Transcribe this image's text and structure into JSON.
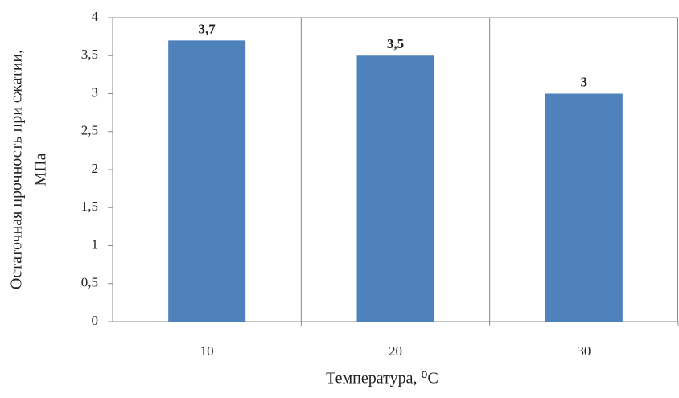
{
  "chart_data": {
    "type": "bar",
    "categories": [
      "10",
      "20",
      "30"
    ],
    "values": [
      3.7,
      3.5,
      3
    ],
    "value_labels": [
      "3,7",
      "3,5",
      "3"
    ],
    "color": "#4f81bd",
    "ylim": [
      0,
      4
    ],
    "yticks": [
      0,
      {
        "value": 0.5,
        "label": "0,5"
      },
      1,
      {
        "value": 1.5,
        "label": "1,5"
      },
      2,
      {
        "value": 2.5,
        "label": "2,5"
      },
      3,
      {
        "value": 3.5,
        "label": "3,5"
      },
      4
    ],
    "y_label": [
      "Остаточная прочность при сжатии,",
      "МПа"
    ],
    "x_label": "Температура, ⁰C",
    "grid": "vertical"
  }
}
